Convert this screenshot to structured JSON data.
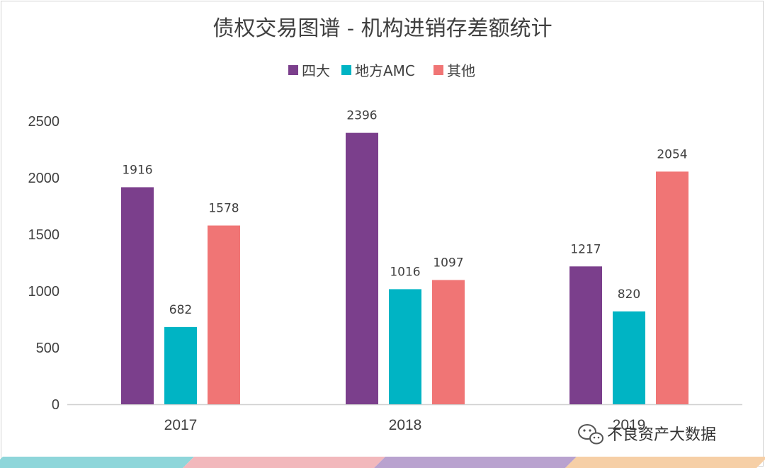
{
  "watermark": {
    "text": "不良资产大数据",
    "icon": "wechat-icon"
  },
  "footer_stripe_colors": [
    "#8ed6da",
    "#f2b8bc",
    "#b9a2cf",
    "#f6cfa6"
  ],
  "chart_data": {
    "type": "bar",
    "title": "债权交易图谱 - 机构进销存差额统计",
    "xlabel": "",
    "ylabel": "",
    "categories": [
      "2017",
      "2018",
      "2019"
    ],
    "series": [
      {
        "name": "四大",
        "color": "#7b3f8c",
        "values": [
          1916,
          2396,
          1217
        ]
      },
      {
        "name": "地方AMC",
        "color": "#00b4c4",
        "values": [
          682,
          1016,
          820
        ]
      },
      {
        "name": "其他",
        "color": "#f07575",
        "values": [
          1578,
          1097,
          2054
        ]
      }
    ],
    "ylim": [
      0,
      2500
    ],
    "yticks": [
      0,
      500,
      1000,
      1500,
      2000,
      2500
    ],
    "grid": false,
    "legend_position": "top"
  }
}
